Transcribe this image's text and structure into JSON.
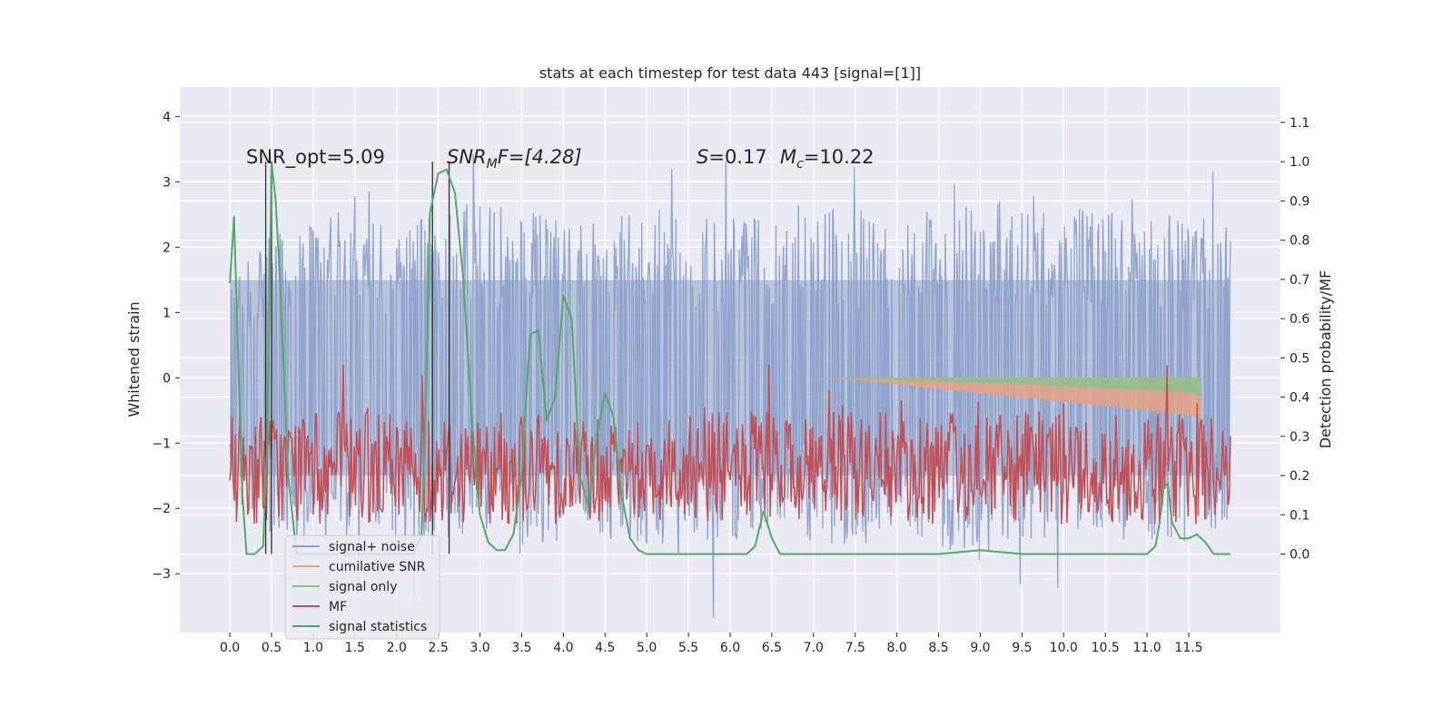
{
  "chart_data": {
    "type": "line",
    "title": "stats at each timestep for test data 443 [signal=[1]]",
    "xlabel": "",
    "ylabel": "Whitened strain",
    "y2label": "Detection probability/MF",
    "xlim": [
      -0.6,
      12.6
    ],
    "ylim": [
      -3.9,
      4.45
    ],
    "y2lim": [
      -0.2,
      1.19
    ],
    "grid": true,
    "legend_position": "lower-left",
    "x_ticks": [
      "0.0",
      "0.5",
      "1.0",
      "1.5",
      "2.0",
      "2.5",
      "3.0",
      "3.5",
      "4.0",
      "4.5",
      "5.0",
      "5.5",
      "6.0",
      "6.5",
      "7.0",
      "7.5",
      "8.0",
      "8.5",
      "9.0",
      "9.5",
      "10.0",
      "10.5",
      "11.0",
      "11.5"
    ],
    "y_ticks": [
      "4",
      "3",
      "2",
      "1",
      "0",
      "−1",
      "−2",
      "−3"
    ],
    "y2_ticks": [
      "1.1",
      "1.0",
      "0.9",
      "0.8",
      "0.7",
      "0.6",
      "0.5",
      "0.4",
      "0.3",
      "0.2",
      "0.1",
      "0.0"
    ],
    "annotations": {
      "snr_opt": "SNR_opt=5.09",
      "snr_mf_main": "SNR",
      "snr_mf_sub": "M",
      "snr_mf_rest": "F=[4.28]",
      "s_label": "S",
      "s_value": "=0.17",
      "mc_label": "M",
      "mc_sub": "c",
      "mc_value": "=10.22"
    },
    "series": [
      {
        "name": "signal+ noise",
        "color": "#8da0cb",
        "envelope_upper": [
          1.5,
          2.2,
          2.5,
          2.6,
          2.4,
          2.6,
          2.7,
          2.5,
          2.6,
          2.5,
          2.7,
          2.6,
          2.5,
          2.6,
          2.7,
          2.6,
          2.5,
          2.6,
          2.8,
          2.6,
          2.7,
          2.6,
          2.5,
          2.6,
          2.4
        ],
        "envelope_lower": [
          -1.8,
          -2.4,
          -2.6,
          -2.5,
          -2.6,
          -2.5,
          -2.4,
          -2.6,
          -2.5,
          -2.4,
          -2.6,
          -2.5,
          -2.6,
          -2.4,
          -2.5,
          -2.6,
          -2.5,
          -2.6,
          -2.8,
          -2.6,
          -2.5,
          -2.4,
          -2.6,
          -2.5,
          -2.2
        ]
      },
      {
        "name": "cumilative SNR",
        "color": "#e6a285",
        "x": [
          7.0,
          7.5,
          8.0,
          8.5,
          9.0,
          9.5,
          10.0,
          10.5,
          11.0,
          11.5,
          11.65
        ],
        "values": [
          0.0,
          -0.03,
          -0.1,
          -0.17,
          -0.24,
          -0.3,
          -0.37,
          -0.43,
          -0.5,
          -0.57,
          -0.62
        ]
      },
      {
        "name": "signal only",
        "color": "#8fbf8f",
        "x": [
          7.0,
          7.5,
          8.0,
          8.5,
          9.0,
          9.5,
          10.0,
          10.5,
          11.0,
          11.5,
          11.65
        ],
        "values": [
          0.0,
          -0.01,
          -0.03,
          -0.06,
          -0.08,
          -0.1,
          -0.13,
          -0.16,
          -0.19,
          -0.23,
          -0.28
        ]
      },
      {
        "name": "MF",
        "color": "#c44e52",
        "mean": 0.22,
        "spread": 0.18,
        "x_range": [
          0.0,
          12.0
        ]
      },
      {
        "name": "signal statistics",
        "color": "#55a868",
        "x": [
          0.0,
          0.05,
          0.1,
          0.15,
          0.2,
          0.3,
          0.4,
          0.45,
          0.5,
          0.55,
          0.6,
          0.7,
          0.8,
          1.0,
          1.5,
          2.0,
          2.2,
          2.3,
          2.35,
          2.4,
          2.5,
          2.6,
          2.7,
          2.8,
          2.9,
          3.0,
          3.1,
          3.2,
          3.3,
          3.4,
          3.5,
          3.6,
          3.7,
          3.8,
          3.9,
          4.0,
          4.1,
          4.2,
          4.3,
          4.4,
          4.5,
          4.6,
          4.7,
          4.8,
          4.9,
          5.0,
          5.5,
          6.0,
          6.2,
          6.3,
          6.4,
          6.5,
          6.6,
          7.0,
          8.0,
          8.5,
          9.0,
          9.5,
          10.0,
          11.0,
          11.1,
          11.15,
          11.2,
          11.25,
          11.3,
          11.4,
          11.5,
          11.6,
          11.7,
          11.8,
          12.0
        ],
        "values": [
          0.69,
          0.86,
          0.5,
          0.15,
          0.0,
          0.0,
          0.02,
          0.3,
          1.0,
          0.9,
          0.7,
          0.2,
          0.0,
          0.0,
          0.0,
          0.0,
          0.0,
          0.05,
          0.4,
          0.87,
          0.97,
          0.98,
          0.92,
          0.7,
          0.35,
          0.1,
          0.03,
          0.01,
          0.01,
          0.05,
          0.2,
          0.56,
          0.57,
          0.34,
          0.4,
          0.66,
          0.6,
          0.2,
          0.12,
          0.3,
          0.41,
          0.35,
          0.15,
          0.04,
          0.01,
          0.0,
          0.0,
          0.0,
          0.0,
          0.02,
          0.11,
          0.04,
          0.0,
          0.0,
          0.0,
          0.0,
          0.01,
          0.0,
          0.0,
          0.0,
          0.02,
          0.08,
          0.17,
          0.18,
          0.08,
          0.04,
          0.04,
          0.05,
          0.03,
          0.0,
          0.0
        ]
      }
    ],
    "vertical_lines_x": [
      0.43,
      0.5,
      2.43,
      2.63
    ]
  }
}
